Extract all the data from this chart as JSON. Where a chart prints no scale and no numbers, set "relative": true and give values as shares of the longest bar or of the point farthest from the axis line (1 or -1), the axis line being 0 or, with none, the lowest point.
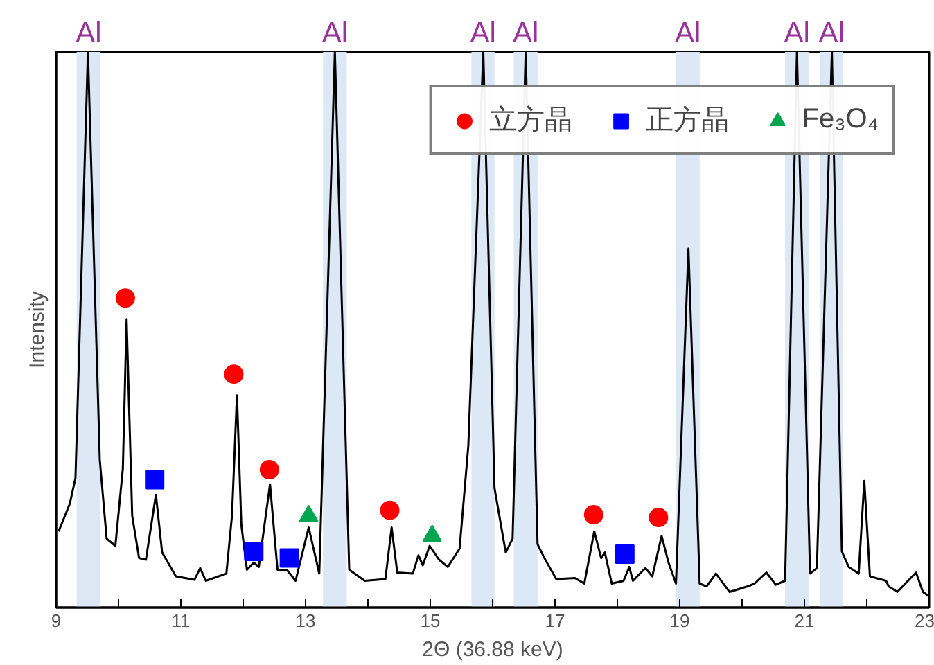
{
  "chart_data": {
    "type": "line",
    "xlabel": "2Θ (36.88 keV)",
    "ylabel": "Intensity",
    "relative": true,
    "xlim": [
      9,
      23
    ],
    "xticks": [
      9,
      {
        "value": 10,
        "label": null
      },
      11,
      {
        "value": 12,
        "label": null
      },
      13,
      {
        "value": 14,
        "label": null
      },
      15,
      {
        "value": 16,
        "label": null
      },
      17,
      {
        "value": 18,
        "label": null
      },
      19,
      {
        "value": 20,
        "label": null
      },
      21,
      {
        "value": 22,
        "label": null
      },
      23
    ],
    "tick_labels": "x",
    "grid": false,
    "legend": "top right",
    "series": [
      {
        "color": "#000000",
        "marker": "none",
        "x": [
          9.04,
          9.22,
          9.31,
          9.51,
          9.7,
          9.81,
          9.95,
          10.07,
          10.13,
          10.22,
          10.33,
          10.44,
          10.6,
          10.7,
          10.92,
          11.22,
          11.31,
          11.4,
          11.73,
          11.82,
          11.9,
          11.97,
          12.06,
          12.17,
          12.25,
          12.43,
          12.55,
          12.7,
          12.84,
          13.05,
          13.22,
          13.47,
          13.7,
          13.95,
          14.28,
          14.38,
          14.47,
          14.72,
          14.81,
          14.88,
          14.99,
          15.14,
          15.28,
          15.47,
          15.61,
          15.85,
          16.03,
          16.21,
          16.32,
          16.53,
          16.72,
          16.83,
          17.02,
          17.32,
          17.47,
          17.63,
          17.74,
          17.8,
          17.91,
          18.1,
          18.19,
          18.25,
          18.45,
          18.56,
          18.71,
          18.82,
          18.94,
          19.14,
          19.32,
          19.43,
          19.58,
          19.8,
          20.09,
          20.2,
          20.39,
          20.54,
          20.69,
          20.88,
          21.09,
          21.2,
          21.44,
          21.6,
          21.71,
          21.87,
          21.96,
          22.05,
          22.31,
          22.35,
          22.49,
          22.79,
          22.9,
          23.0
        ],
        "values": [
          0.137,
          0.187,
          0.233,
          1.0,
          0.266,
          0.124,
          0.111,
          0.25,
          0.519,
          0.165,
          0.089,
          0.086,
          0.203,
          0.099,
          0.056,
          0.05,
          0.071,
          0.048,
          0.061,
          0.165,
          0.382,
          0.149,
          0.068,
          0.081,
          0.073,
          0.222,
          0.068,
          0.068,
          0.048,
          0.144,
          0.061,
          1.0,
          0.068,
          0.048,
          0.051,
          0.144,
          0.063,
          0.061,
          0.094,
          0.076,
          0.111,
          0.086,
          0.073,
          0.106,
          0.291,
          1.0,
          0.215,
          0.099,
          0.124,
          1.0,
          0.114,
          0.089,
          0.051,
          0.053,
          0.043,
          0.137,
          0.089,
          0.099,
          0.043,
          0.048,
          0.073,
          0.048,
          0.071,
          0.056,
          0.129,
          0.081,
          0.043,
          0.646,
          0.043,
          0.038,
          0.061,
          0.028,
          0.038,
          0.043,
          0.063,
          0.041,
          0.048,
          1.0,
          0.061,
          0.071,
          1.0,
          0.101,
          0.073,
          0.061,
          0.228,
          0.056,
          0.048,
          0.038,
          0.028,
          0.063,
          0.028,
          0.02
        ]
      },
      {
        "type": "scatter",
        "name": "立方晶",
        "color": "#ff0000",
        "marker": "circle",
        "x": [
          10.11,
          11.85,
          12.42,
          14.35,
          17.62,
          18.66
        ],
        "values": [
          0.557,
          0.42,
          0.248,
          0.175,
          0.167,
          0.162
        ]
      },
      {
        "type": "scatter",
        "name": "正方晶",
        "color": "#0000ff",
        "marker": "square",
        "x": [
          10.58,
          12.17,
          12.74,
          18.12
        ],
        "values": [
          0.23,
          0.101,
          0.089,
          0.096
        ]
      },
      {
        "type": "scatter",
        "name": "Fe₃O₄",
        "color": "#00a550",
        "marker": "triangle",
        "x": [
          13.05,
          15.03
        ],
        "values": [
          0.165,
          0.129
        ]
      }
    ],
    "bands": [
      {
        "axis": "x",
        "from": 9.33,
        "to": 9.71,
        "label": "Al",
        "color": "#dce8f5"
      },
      {
        "axis": "x",
        "from": 13.28,
        "to": 13.66,
        "label": "Al",
        "color": "#dce8f5"
      },
      {
        "axis": "x",
        "from": 15.66,
        "to": 16.03,
        "label": "Al",
        "color": "#dce8f5"
      },
      {
        "axis": "x",
        "from": 16.34,
        "to": 16.72,
        "label": "Al",
        "color": "#dce8f5"
      },
      {
        "axis": "x",
        "from": 18.94,
        "to": 19.32,
        "label": "Al",
        "color": "#dce8f5"
      },
      {
        "axis": "x",
        "from": 20.69,
        "to": 21.07,
        "label": "Al",
        "color": "#dce8f5"
      },
      {
        "axis": "x",
        "from": 21.25,
        "to": 21.62,
        "label": "Al",
        "color": "#dce8f5"
      }
    ]
  }
}
